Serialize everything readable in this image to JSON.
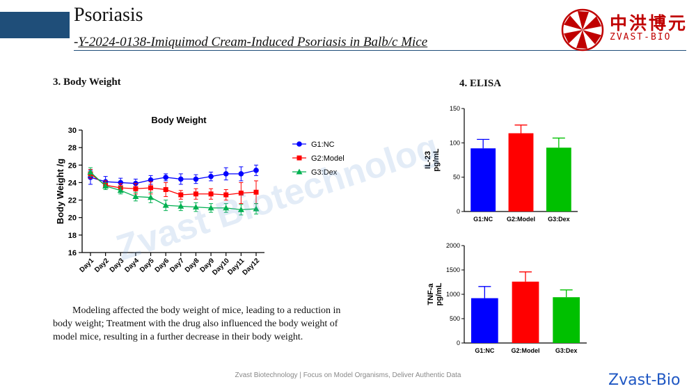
{
  "header": {
    "title": "Psoriasis",
    "subtitle_prefix": "-",
    "subtitle": "Y-2024-0138-Imiquimod Cream-Induced Psoriasis in Balb/c Mice",
    "logo_cn": "中洪博元",
    "logo_en": "ZVAST-BIO",
    "accent_color": "#1f4e79",
    "logo_color": "#c00000"
  },
  "sections": {
    "body_weight": "3. Body Weight",
    "elisa": "4. ELISA"
  },
  "paragraph": "Modeling affected the body weight of mice, leading to a reduction in body weight; Treatment with the drug also influenced the body weight of model mice, resulting in a further decrease in their body weight.",
  "footer": "Zvast Biotechnology | Focus on Model Organisms, Deliver Authentic Data",
  "brand": "Zvast-Bio",
  "watermark": "Zvast Biotechnolog",
  "chart_data": [
    {
      "type": "line",
      "title": "Body Weight",
      "xlabel": "",
      "ylabel": "Body Weight /g",
      "ylim": [
        16,
        30
      ],
      "yticks": [
        16,
        18,
        20,
        22,
        24,
        26,
        28,
        30
      ],
      "categories": [
        "Day1",
        "Day2",
        "Day3",
        "Day4",
        "Day5",
        "Day6",
        "Day7",
        "Day8",
        "Day9",
        "Day10",
        "Day11",
        "Day12"
      ],
      "legend_position": "right",
      "series": [
        {
          "name": "G1:NC",
          "color": "#0000ff",
          "marker": "circle",
          "values": [
            24.6,
            24.1,
            24.0,
            23.9,
            24.3,
            24.6,
            24.4,
            24.4,
            24.7,
            25.0,
            25.0,
            25.4
          ],
          "errors": [
            0.8,
            0.6,
            0.5,
            0.5,
            0.5,
            0.4,
            0.6,
            0.5,
            0.5,
            0.7,
            0.8,
            0.6
          ]
        },
        {
          "name": "G2:Model",
          "color": "#ff0000",
          "marker": "square",
          "values": [
            25.0,
            23.7,
            23.4,
            23.3,
            23.4,
            23.2,
            22.6,
            22.7,
            22.7,
            22.6,
            22.8,
            22.9
          ],
          "errors": [
            0.5,
            0.5,
            0.5,
            0.6,
            0.7,
            0.8,
            0.5,
            0.6,
            0.6,
            0.6,
            1.2,
            1.3
          ]
        },
        {
          "name": "G3:Dex",
          "color": "#00b050",
          "marker": "triangle",
          "values": [
            25.2,
            23.6,
            23.1,
            22.4,
            22.3,
            21.4,
            21.3,
            21.2,
            21.1,
            21.1,
            20.9,
            21.0
          ],
          "errors": [
            0.5,
            0.4,
            0.4,
            0.5,
            0.6,
            0.6,
            0.5,
            0.5,
            0.5,
            0.5,
            0.6,
            0.6
          ]
        }
      ]
    },
    {
      "type": "bar",
      "ylabel": "IL-23 pg/mL",
      "ylim": [
        0,
        150
      ],
      "yticks": [
        0,
        50,
        100,
        150
      ],
      "categories": [
        "G1:NC",
        "G2:Model",
        "G3:Dex"
      ],
      "values": [
        92,
        114,
        93
      ],
      "errors": [
        13,
        12,
        14
      ],
      "colors": [
        "#0000ff",
        "#ff0000",
        "#00c000"
      ]
    },
    {
      "type": "bar",
      "ylabel": "TNF-a pg/mL",
      "ylim": [
        0,
        2000
      ],
      "yticks": [
        0,
        500,
        1000,
        1500,
        2000
      ],
      "categories": [
        "G1:NC",
        "G2:Model",
        "G3:Dex"
      ],
      "values": [
        920,
        1260,
        940
      ],
      "errors": [
        240,
        200,
        150
      ],
      "colors": [
        "#0000ff",
        "#ff0000",
        "#00c000"
      ]
    }
  ]
}
